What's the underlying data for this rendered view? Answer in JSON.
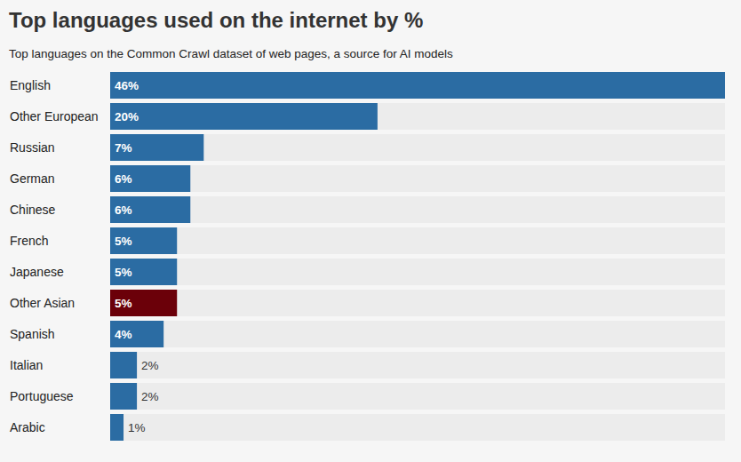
{
  "chart_data": {
    "type": "bar",
    "orientation": "horizontal",
    "title": "Top languages used on the internet by %",
    "subtitle": "Top languages on the Common Crawl dataset of web pages, a source for AI models",
    "categories": [
      "English",
      "Other European",
      "Russian",
      "German",
      "Chinese",
      "French",
      "Japanese",
      "Other Asian",
      "Spanish",
      "Italian",
      "Portuguese",
      "Arabic"
    ],
    "values": [
      46,
      20,
      7,
      6,
      6,
      5,
      5,
      5,
      4,
      2,
      2,
      1
    ],
    "value_labels": [
      "46%",
      "20%",
      "7%",
      "6%",
      "6%",
      "5%",
      "5%",
      "5%",
      "4%",
      "2%",
      "2%",
      "1%"
    ],
    "colors": [
      "#2b6ca3",
      "#2b6ca3",
      "#2b6ca3",
      "#2b6ca3",
      "#2b6ca3",
      "#2b6ca3",
      "#2b6ca3",
      "#6b0009",
      "#2b6ca3",
      "#2b6ca3",
      "#2b6ca3",
      "#2b6ca3"
    ],
    "xlim": [
      0,
      46
    ],
    "data_labels": true,
    "tick_labels": "y",
    "grid": false
  }
}
